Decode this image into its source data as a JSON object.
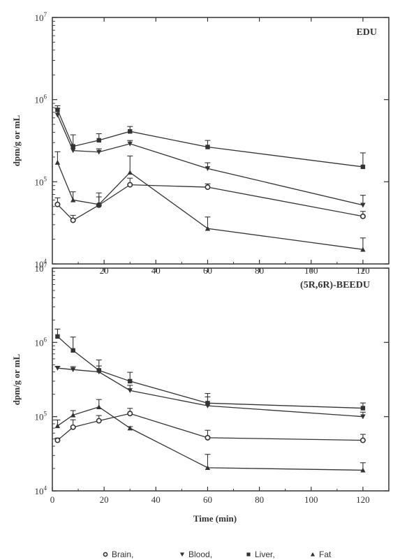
{
  "chart_data": [
    {
      "type": "line",
      "title": "EDU",
      "ylabel": "dpm/g or mL",
      "xlabel": "",
      "xlim": [
        0,
        130
      ],
      "ylim": [
        10000,
        10000000
      ],
      "yscale": "log",
      "xticks": [
        "20",
        "40",
        "60",
        "80",
        "100",
        "120"
      ],
      "yticks": [
        {
          "base": "10",
          "exp": "4"
        },
        {
          "base": "10",
          "exp": "5"
        },
        {
          "base": "10",
          "exp": "6"
        },
        {
          "base": "10",
          "exp": "7"
        }
      ],
      "grid": false,
      "series": [
        {
          "name": "Brain",
          "marker": "circle",
          "x": [
            2,
            8,
            18,
            30,
            60,
            120
          ],
          "y": [
            53000,
            34000,
            52000,
            92000,
            86000,
            38000
          ],
          "err": [
            0.08,
            0.06,
            0.1,
            0.08,
            0.04,
            0.06
          ]
        },
        {
          "name": "Blood",
          "marker": "down-triangle",
          "x": [
            2,
            8,
            18,
            30,
            60,
            120
          ],
          "y": [
            650000,
            240000,
            230000,
            290000,
            145000,
            52000
          ],
          "err": [
            0.08,
            0.06,
            0.04,
            0.04,
            0.07,
            0.12
          ]
        },
        {
          "name": "Liver",
          "marker": "square",
          "x": [
            2,
            8,
            18,
            30,
            60,
            120
          ],
          "y": [
            750000,
            270000,
            320000,
            410000,
            265000,
            152000
          ],
          "err": [
            0.05,
            0.14,
            0.08,
            0.06,
            0.08,
            0.17
          ]
        },
        {
          "name": "Fat",
          "marker": "triangle",
          "x": [
            2,
            8,
            18,
            30,
            60,
            120
          ],
          "y": [
            172000,
            60000,
            53000,
            130000,
            27000,
            15000
          ],
          "err": [
            0.13,
            0.1,
            0.14,
            0.2,
            0.14,
            0.14
          ]
        }
      ]
    },
    {
      "type": "line",
      "title": "(5R,6R)-BEEDU",
      "ylabel": "dpm/g or mL",
      "xlabel": "Time (min)",
      "xlim": [
        0,
        130
      ],
      "ylim": [
        10000,
        10000000
      ],
      "yscale": "log",
      "xticks": [
        "0",
        "20",
        "40",
        "60",
        "80",
        "100",
        "120"
      ],
      "yticks": [
        {
          "base": "10",
          "exp": "4"
        },
        {
          "base": "10",
          "exp": "5"
        },
        {
          "base": "10",
          "exp": "6"
        },
        {
          "base": "10",
          "exp": "7"
        }
      ],
      "grid": false,
      "series": [
        {
          "name": "Brain",
          "marker": "circle",
          "x": [
            2,
            8,
            18,
            30,
            60,
            120
          ],
          "y": [
            48000,
            72000,
            88000,
            110000,
            52000,
            48000
          ],
          "err": [
            0.03,
            0.1,
            0.07,
            0.07,
            0.1,
            0.08
          ]
        },
        {
          "name": "Blood",
          "marker": "down-triangle",
          "x": [
            2,
            8,
            18,
            30,
            60,
            120
          ],
          "y": [
            450000,
            430000,
            400000,
            225000,
            140000,
            100000
          ],
          "err": [
            0.02,
            0.04,
            0.08,
            0.07,
            0.12,
            0.06
          ]
        },
        {
          "name": "Liver",
          "marker": "square",
          "x": [
            2,
            8,
            18,
            30,
            60,
            120
          ],
          "y": [
            1200000,
            780000,
            420000,
            300000,
            152000,
            130000
          ],
          "err": [
            0.1,
            0.18,
            0.14,
            0.12,
            0.13,
            0.07
          ]
        },
        {
          "name": "Fat",
          "marker": "triangle",
          "x": [
            2,
            8,
            18,
            30,
            60,
            120
          ],
          "y": [
            75000,
            105000,
            135000,
            70000,
            20500,
            19000
          ],
          "err": [
            0.08,
            0.06,
            0.1,
            0.02,
            0.18,
            0.1
          ]
        }
      ]
    }
  ],
  "legend": [
    {
      "marker": "circle",
      "label": "Brain,"
    },
    {
      "marker": "down-triangle",
      "label": "Blood,"
    },
    {
      "marker": "square",
      "label": "Liver,"
    },
    {
      "marker": "triangle",
      "label": "Fat"
    }
  ]
}
